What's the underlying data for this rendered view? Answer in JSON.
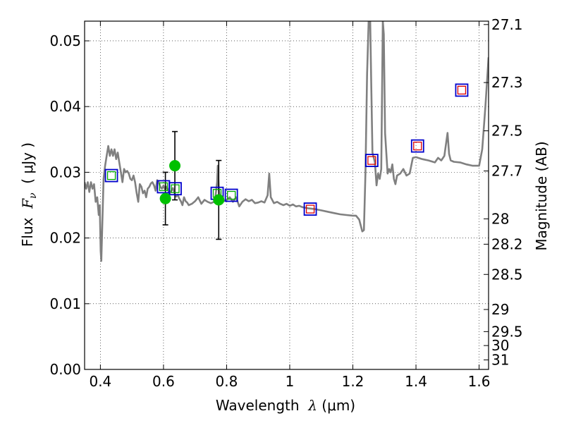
{
  "chart_data": {
    "type": "line",
    "xlabel_prefix": "Wavelength  ",
    "xlabel_symbol": "λ",
    "xlabel_unit": " (μm)",
    "ylabel_prefix": "Flux  ",
    "ylabel_symbol": "F",
    "ylabel_subscript": "ν",
    "ylabel_unit": "  ( μJy )",
    "y2label": "Magnitude (AB)",
    "xlim": [
      0.35,
      1.63
    ],
    "ylim": [
      0.0,
      0.053
    ],
    "grid": true,
    "x_ticks": [
      0.4,
      0.6,
      0.8,
      1.0,
      1.2,
      1.4,
      1.6
    ],
    "x_tick_labels": [
      "0.4",
      "0.6",
      "0.8",
      "1",
      "1.2",
      "1.4",
      "1.6"
    ],
    "y_ticks": [
      0.0,
      0.01,
      0.02,
      0.03,
      0.04,
      0.05
    ],
    "y_tick_labels": [
      "0.00",
      "0.01",
      "0.02",
      "0.03",
      "0.04",
      "0.05"
    ],
    "mag_ticks": [
      27.1,
      27.3,
      27.5,
      27.7,
      28,
      28.2,
      28.5,
      29,
      29.5,
      30,
      31
    ],
    "mag_tick_labels": [
      "27.1",
      "27.3",
      "27.5",
      "27.7",
      "28",
      "28.2",
      "28.5",
      "29",
      "29.5",
      "30",
      "31"
    ],
    "sed_color": "#808080",
    "sed": [
      [
        0.35,
        0.0285
      ],
      [
        0.355,
        0.0275
      ],
      [
        0.36,
        0.0285
      ],
      [
        0.365,
        0.027
      ],
      [
        0.37,
        0.0285
      ],
      [
        0.375,
        0.0275
      ],
      [
        0.38,
        0.0282
      ],
      [
        0.385,
        0.0255
      ],
      [
        0.39,
        0.0262
      ],
      [
        0.395,
        0.0235
      ],
      [
        0.398,
        0.025
      ],
      [
        0.401,
        0.018
      ],
      [
        0.403,
        0.0165
      ],
      [
        0.406,
        0.022
      ],
      [
        0.41,
        0.029
      ],
      [
        0.415,
        0.031
      ],
      [
        0.42,
        0.0325
      ],
      [
        0.425,
        0.034
      ],
      [
        0.43,
        0.0325
      ],
      [
        0.435,
        0.0335
      ],
      [
        0.44,
        0.0325
      ],
      [
        0.445,
        0.0335
      ],
      [
        0.45,
        0.032
      ],
      [
        0.455,
        0.033
      ],
      [
        0.46,
        0.0315
      ],
      [
        0.465,
        0.03
      ],
      [
        0.47,
        0.0285
      ],
      [
        0.475,
        0.0305
      ],
      [
        0.48,
        0.03
      ],
      [
        0.485,
        0.0302
      ],
      [
        0.49,
        0.0298
      ],
      [
        0.495,
        0.029
      ],
      [
        0.5,
        0.0288
      ],
      [
        0.505,
        0.0295
      ],
      [
        0.51,
        0.0285
      ],
      [
        0.515,
        0.0268
      ],
      [
        0.52,
        0.0255
      ],
      [
        0.525,
        0.0282
      ],
      [
        0.53,
        0.0278
      ],
      [
        0.535,
        0.0268
      ],
      [
        0.54,
        0.0272
      ],
      [
        0.545,
        0.0262
      ],
      [
        0.55,
        0.0275
      ],
      [
        0.555,
        0.0278
      ],
      [
        0.56,
        0.0283
      ],
      [
        0.565,
        0.0285
      ],
      [
        0.57,
        0.028
      ],
      [
        0.575,
        0.0272
      ],
      [
        0.58,
        0.0288
      ],
      [
        0.585,
        0.0285
      ],
      [
        0.59,
        0.0278
      ],
      [
        0.595,
        0.0275
      ],
      [
        0.6,
        0.028
      ],
      [
        0.605,
        0.0273
      ],
      [
        0.61,
        0.0278
      ],
      [
        0.615,
        0.0272
      ],
      [
        0.62,
        0.0268
      ],
      [
        0.625,
        0.0272
      ],
      [
        0.63,
        0.0276
      ],
      [
        0.635,
        0.0268
      ],
      [
        0.64,
        0.0263
      ],
      [
        0.645,
        0.0266
      ],
      [
        0.65,
        0.026
      ],
      [
        0.655,
        0.0256
      ],
      [
        0.66,
        0.025
      ],
      [
        0.665,
        0.0262
      ],
      [
        0.67,
        0.0256
      ],
      [
        0.675,
        0.0254
      ],
      [
        0.68,
        0.025
      ],
      [
        0.69,
        0.0252
      ],
      [
        0.7,
        0.0256
      ],
      [
        0.71,
        0.0262
      ],
      [
        0.72,
        0.0252
      ],
      [
        0.73,
        0.0258
      ],
      [
        0.74,
        0.0255
      ],
      [
        0.75,
        0.0253
      ],
      [
        0.76,
        0.0255
      ],
      [
        0.765,
        0.0265
      ],
      [
        0.77,
        0.0285
      ],
      [
        0.772,
        0.031
      ],
      [
        0.775,
        0.0275
      ],
      [
        0.78,
        0.0257
      ],
      [
        0.79,
        0.0256
      ],
      [
        0.8,
        0.0258
      ],
      [
        0.81,
        0.0262
      ],
      [
        0.82,
        0.0255
      ],
      [
        0.83,
        0.0262
      ],
      [
        0.84,
        0.0248
      ],
      [
        0.85,
        0.0255
      ],
      [
        0.86,
        0.0259
      ],
      [
        0.87,
        0.0256
      ],
      [
        0.88,
        0.0258
      ],
      [
        0.89,
        0.0253
      ],
      [
        0.9,
        0.0254
      ],
      [
        0.91,
        0.0256
      ],
      [
        0.92,
        0.0254
      ],
      [
        0.93,
        0.0265
      ],
      [
        0.935,
        0.0298
      ],
      [
        0.94,
        0.0262
      ],
      [
        0.95,
        0.0253
      ],
      [
        0.96,
        0.0255
      ],
      [
        0.97,
        0.0252
      ],
      [
        0.98,
        0.025
      ],
      [
        0.99,
        0.0252
      ],
      [
        1.0,
        0.0249
      ],
      [
        1.01,
        0.0251
      ],
      [
        1.02,
        0.0248
      ],
      [
        1.03,
        0.0249
      ],
      [
        1.04,
        0.0247
      ],
      [
        1.05,
        0.0246
      ],
      [
        1.06,
        0.0245
      ],
      [
        1.08,
        0.0244
      ],
      [
        1.1,
        0.0242
      ],
      [
        1.12,
        0.024
      ],
      [
        1.14,
        0.0238
      ],
      [
        1.16,
        0.0236
      ],
      [
        1.18,
        0.0235
      ],
      [
        1.2,
        0.0234
      ],
      [
        1.21,
        0.0234
      ],
      [
        1.22,
        0.0228
      ],
      [
        1.23,
        0.021
      ],
      [
        1.235,
        0.0212
      ],
      [
        1.24,
        0.03
      ],
      [
        1.245,
        0.045
      ],
      [
        1.25,
        0.053
      ],
      [
        1.255,
        0.053
      ],
      [
        1.258,
        0.044
      ],
      [
        1.262,
        0.033
      ],
      [
        1.27,
        0.0315
      ],
      [
        1.275,
        0.028
      ],
      [
        1.28,
        0.0298
      ],
      [
        1.285,
        0.029
      ],
      [
        1.29,
        0.0305
      ],
      [
        1.295,
        0.053
      ],
      [
        1.298,
        0.051
      ],
      [
        1.302,
        0.036
      ],
      [
        1.31,
        0.0298
      ],
      [
        1.315,
        0.0305
      ],
      [
        1.32,
        0.03
      ],
      [
        1.325,
        0.0312
      ],
      [
        1.33,
        0.029
      ],
      [
        1.335,
        0.0282
      ],
      [
        1.34,
        0.0295
      ],
      [
        1.35,
        0.0298
      ],
      [
        1.36,
        0.0305
      ],
      [
        1.37,
        0.0295
      ],
      [
        1.38,
        0.0298
      ],
      [
        1.39,
        0.0322
      ],
      [
        1.4,
        0.0323
      ],
      [
        1.42,
        0.032
      ],
      [
        1.44,
        0.0318
      ],
      [
        1.46,
        0.0315
      ],
      [
        1.47,
        0.0322
      ],
      [
        1.48,
        0.0318
      ],
      [
        1.49,
        0.0325
      ],
      [
        1.5,
        0.036
      ],
      [
        1.505,
        0.0328
      ],
      [
        1.51,
        0.0318
      ],
      [
        1.52,
        0.0316
      ],
      [
        1.54,
        0.0315
      ],
      [
        1.56,
        0.0312
      ],
      [
        1.58,
        0.031
      ],
      [
        1.6,
        0.031
      ],
      [
        1.61,
        0.0335
      ],
      [
        1.62,
        0.04
      ],
      [
        1.63,
        0.0475
      ]
    ],
    "model_points": [
      {
        "x": 0.435,
        "y": 0.0295,
        "outer": "#0000cc",
        "inner": "#00aa00"
      },
      {
        "x": 0.6,
        "y": 0.0278,
        "outer": "#0000cc",
        "inner": "#00aa00"
      },
      {
        "x": 0.637,
        "y": 0.0275,
        "outer": "#0000cc",
        "inner": "#00aa00"
      },
      {
        "x": 0.77,
        "y": 0.0268,
        "outer": "#0000cc",
        "inner": "#00aa00"
      },
      {
        "x": 0.815,
        "y": 0.0265,
        "outer": "#0000cc",
        "inner": "#00aa00"
      },
      {
        "x": 1.065,
        "y": 0.0244,
        "outer": "#0000cc",
        "inner": "#dd0000"
      },
      {
        "x": 1.26,
        "y": 0.0318,
        "outer": "#0000cc",
        "inner": "#dd0000"
      },
      {
        "x": 1.405,
        "y": 0.034,
        "outer": "#0000cc",
        "inner": "#dd0000"
      },
      {
        "x": 1.545,
        "y": 0.0425,
        "outer": "#0000cc",
        "inner": "#dd0000"
      }
    ],
    "observed_points": [
      {
        "x": 0.606,
        "y": 0.026,
        "err": 0.004
      },
      {
        "x": 0.636,
        "y": 0.031,
        "err": 0.0052
      },
      {
        "x": 0.775,
        "y": 0.0258,
        "err": 0.006
      }
    ],
    "observed_color": "#00c000"
  }
}
